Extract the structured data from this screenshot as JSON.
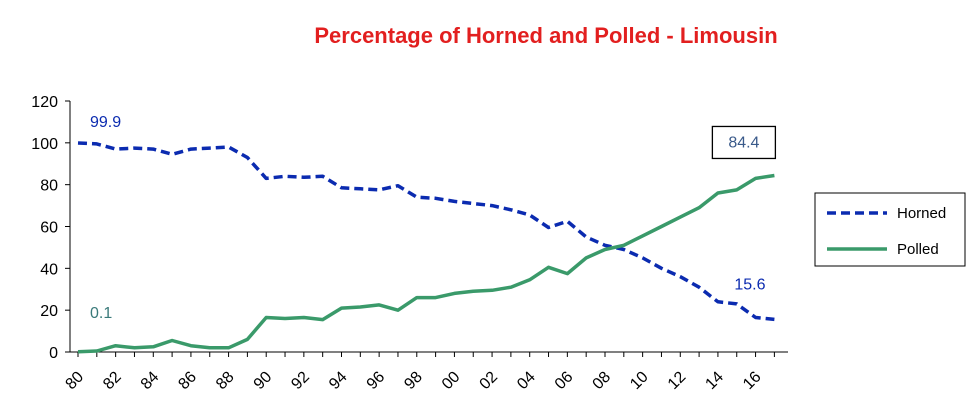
{
  "chart_data": {
    "type": "line",
    "title": "Percentage of Horned and Polled - Limousin",
    "xlabel": "",
    "ylabel": "",
    "ylim": [
      0,
      120
    ],
    "yticks": [
      "0",
      "20",
      "40",
      "60",
      "80",
      "100",
      "120"
    ],
    "xticks": [
      "80",
      "82",
      "84",
      "86",
      "88",
      "90",
      "92",
      "94",
      "96",
      "98",
      "00",
      "02",
      "04",
      "06",
      "08",
      "10",
      "12",
      "14",
      "16"
    ],
    "x": [
      "80",
      "81",
      "82",
      "83",
      "84",
      "85",
      "86",
      "87",
      "88",
      "89",
      "90",
      "91",
      "92",
      "93",
      "94",
      "95",
      "96",
      "97",
      "98",
      "99",
      "00",
      "01",
      "02",
      "03",
      "04",
      "05",
      "06",
      "07",
      "08",
      "09",
      "10",
      "11",
      "12",
      "13",
      "14",
      "15",
      "16",
      "17"
    ],
    "grid": false,
    "legend_position": "right",
    "series": [
      {
        "name": "Horned",
        "color": "#0b2bb0",
        "style": "dashed",
        "values": [
          99.9,
          99.5,
          97,
          97.5,
          97,
          94.5,
          97,
          97.5,
          98,
          93,
          83,
          84,
          83.5,
          84,
          78.5,
          78,
          77.5,
          79.5,
          74,
          73.5,
          72,
          71,
          70,
          68,
          65.5,
          59.5,
          62.5,
          55,
          51,
          49,
          45,
          40,
          36,
          31,
          24,
          23,
          16.5,
          15.6
        ]
      },
      {
        "name": "Polled",
        "color": "#3a9a6a",
        "style": "solid",
        "values": [
          0.1,
          0.5,
          3,
          2,
          2.5,
          5.5,
          3,
          2,
          2,
          6,
          16.5,
          16,
          16.5,
          15.5,
          21,
          21.5,
          22.5,
          20,
          26,
          26,
          28,
          29,
          29.5,
          31,
          34.5,
          40.5,
          37.5,
          45,
          49,
          51,
          55.5,
          60,
          64.5,
          69,
          76,
          77.5,
          83,
          84.4
        ]
      }
    ],
    "annotations": [
      {
        "text": "99.9",
        "series": "Horned",
        "at": "80",
        "color": "#0b2bb0",
        "boxed": false
      },
      {
        "text": "0.1",
        "series": "Polled",
        "at": "80",
        "color": "#3a7a7a",
        "boxed": false
      },
      {
        "text": "84.4",
        "series": "Polled",
        "at": "17",
        "color": "#3a5a8a",
        "boxed": true
      },
      {
        "text": "15.6",
        "series": "Horned",
        "at": "17",
        "color": "#0b2bb0",
        "boxed": false
      }
    ]
  }
}
